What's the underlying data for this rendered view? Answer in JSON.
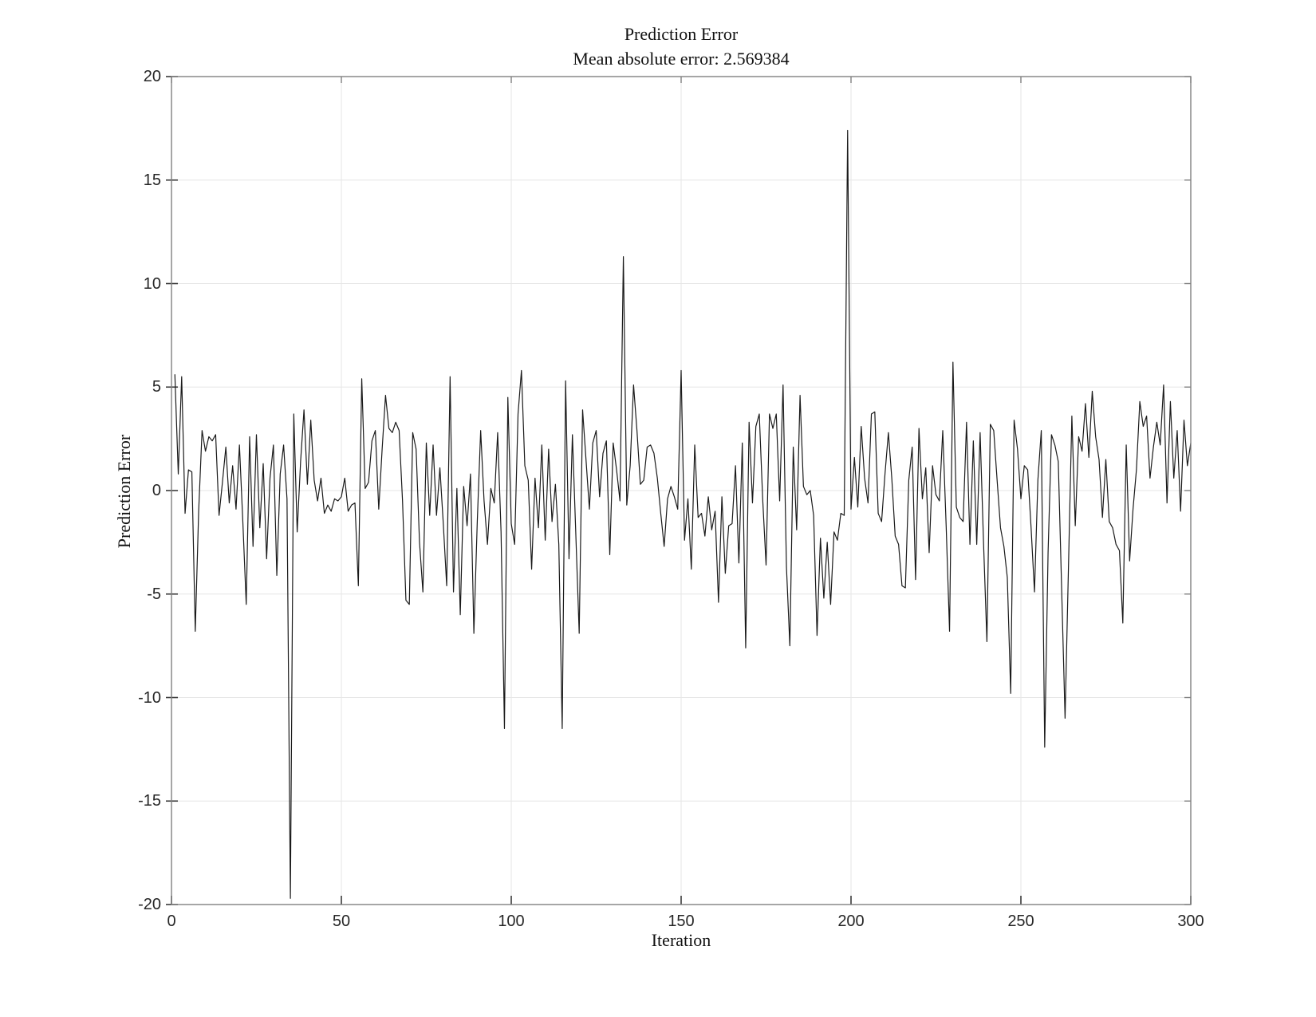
{
  "chart_data": {
    "type": "line",
    "title": "Prediction Error",
    "subtitle": "Mean absolute error: 2.569384",
    "xlabel": "Iteration",
    "ylabel": "Prediction Error",
    "x_range": [
      0,
      300
    ],
    "y_range": [
      -20,
      20
    ],
    "grid": true,
    "legend": false,
    "mean_absolute_error": "2.569384",
    "x_ticks": [
      {
        "value": 0,
        "label": "0"
      },
      {
        "value": 50,
        "label": "50"
      },
      {
        "value": 100,
        "label": "100"
      },
      {
        "value": 150,
        "label": "150"
      },
      {
        "value": 200,
        "label": "200"
      },
      {
        "value": 250,
        "label": "250"
      },
      {
        "value": 300,
        "label": "300"
      }
    ],
    "y_ticks": [
      {
        "value": 20,
        "label": "20"
      },
      {
        "value": 15,
        "label": "15"
      },
      {
        "value": 10,
        "label": "10"
      },
      {
        "value": 5,
        "label": "5"
      },
      {
        "value": 0,
        "label": "0"
      },
      {
        "value": -5,
        "label": "-5"
      },
      {
        "value": -10,
        "label": "-10"
      },
      {
        "value": -15,
        "label": "-15"
      },
      {
        "value": -20,
        "label": "-20"
      }
    ],
    "colors": {
      "line": "#1a1a1a",
      "axis": "#808080",
      "grid": "#e6e6e6",
      "tick": "#3a3a3a",
      "text": "#111111",
      "background": "#ffffff"
    },
    "series": [
      {
        "name": "prediction error",
        "x_start": 1,
        "x_step": 1,
        "values": [
          5.6,
          0.8,
          5.5,
          -1.1,
          1.0,
          0.9,
          -6.8,
          -1.0,
          2.9,
          1.9,
          2.6,
          2.4,
          2.7,
          -1.2,
          0.4,
          2.1,
          -0.6,
          1.2,
          -0.9,
          2.2,
          -1.5,
          -5.5,
          2.6,
          -2.7,
          2.7,
          -1.8,
          1.3,
          -3.3,
          0.6,
          2.2,
          -4.1,
          0.8,
          2.2,
          -0.4,
          -19.7,
          3.7,
          -2.0,
          1.4,
          3.9,
          0.3,
          3.4,
          0.5,
          -0.5,
          0.6,
          -1.1,
          -0.7,
          -1.0,
          -0.4,
          -0.5,
          -0.3,
          0.6,
          -1.0,
          -0.7,
          -0.6,
          -4.6,
          5.4,
          0.1,
          0.4,
          2.4,
          2.9,
          -0.9,
          2.0,
          4.6,
          3.0,
          2.8,
          3.3,
          2.9,
          -0.5,
          -5.3,
          -5.5,
          2.8,
          2.0,
          -2.5,
          -4.9,
          2.3,
          -1.2,
          2.2,
          -1.2,
          1.1,
          -1.6,
          -4.6,
          5.5,
          -4.9,
          0.1,
          -6.0,
          0.2,
          -1.7,
          0.8,
          -6.9,
          -1.5,
          2.9,
          -0.5,
          -2.6,
          0.1,
          -0.6,
          2.8,
          -2.0,
          -11.5,
          4.5,
          -1.6,
          -2.6,
          3.7,
          5.8,
          1.2,
          0.5,
          -3.8,
          0.6,
          -1.8,
          2.2,
          -2.4,
          2.0,
          -1.5,
          0.3,
          -2.6,
          -11.5,
          5.3,
          -3.3,
          2.7,
          -2.1,
          -6.9,
          3.9,
          1.5,
          -0.9,
          2.3,
          2.9,
          -0.3,
          1.8,
          2.4,
          -3.1,
          2.3,
          1.0,
          -0.5,
          11.3,
          -0.7,
          1.2,
          5.1,
          2.9,
          0.3,
          0.5,
          2.1,
          2.2,
          1.8,
          0.6,
          -1.1,
          -2.7,
          -0.4,
          0.2,
          -0.3,
          -0.9,
          5.8,
          -2.4,
          -0.4,
          -3.8,
          2.2,
          -1.3,
          -1.1,
          -2.2,
          -0.3,
          -1.9,
          -1.0,
          -5.4,
          -0.3,
          -4.0,
          -1.7,
          -1.6,
          1.2,
          -3.5,
          2.3,
          -7.6,
          3.3,
          -0.6,
          3.1,
          3.7,
          -0.4,
          -3.6,
          3.7,
          3.0,
          3.7,
          -0.5,
          5.1,
          -3.7,
          -7.5,
          2.1,
          -1.9,
          4.6,
          0.2,
          -0.2,
          0.0,
          -1.2,
          -7.0,
          -2.3,
          -5.2,
          -2.5,
          -5.5,
          -2.0,
          -2.4,
          -1.1,
          -1.2,
          17.4,
          -0.9,
          1.6,
          -0.8,
          3.1,
          0.6,
          -0.6,
          3.7,
          3.8,
          -1.1,
          -1.5,
          0.8,
          2.8,
          0.6,
          -2.2,
          -2.6,
          -4.6,
          -4.7,
          0.5,
          2.1,
          -4.3,
          3.0,
          -0.4,
          1.1,
          -3.0,
          1.2,
          -0.2,
          -0.5,
          2.9,
          -1.7,
          -6.8,
          6.2,
          -0.8,
          -1.3,
          -1.5,
          3.3,
          -2.6,
          2.4,
          -2.6,
          2.8,
          -2.5,
          -7.3,
          3.2,
          2.9,
          0.5,
          -1.8,
          -2.7,
          -4.2,
          -9.8,
          3.4,
          2.0,
          -0.4,
          1.2,
          1.0,
          -1.8,
          -4.9,
          0.5,
          2.9,
          -12.4,
          -3.0,
          2.7,
          2.2,
          1.4,
          -4.8,
          -11.0,
          -3.7,
          3.6,
          -1.7,
          2.6,
          1.9,
          4.2,
          1.6,
          4.8,
          2.6,
          1.5,
          -1.3,
          1.5,
          -1.5,
          -1.8,
          -2.6,
          -2.9,
          -6.4,
          2.2,
          -3.4,
          -0.9,
          1.0,
          4.3,
          3.1,
          3.6,
          0.6,
          2.1,
          3.3,
          2.2,
          5.1,
          -0.6,
          4.3,
          0.6,
          2.9,
          -1.0,
          3.4,
          1.2,
          2.3
        ]
      }
    ]
  }
}
